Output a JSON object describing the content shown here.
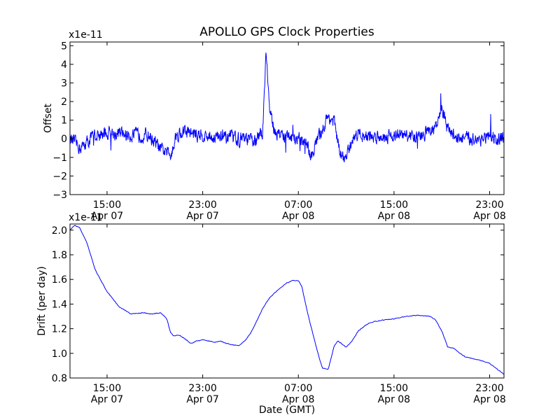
{
  "title": "APOLLO GPS Clock Properties",
  "x_ticks": [
    {
      "hour": 15,
      "time": "15:00",
      "date": "Apr 07"
    },
    {
      "hour": 23,
      "time": "23:00",
      "date": "Apr 07"
    },
    {
      "hour": 31,
      "time": "07:00",
      "date": "Apr 08"
    },
    {
      "hour": 39,
      "time": "15:00",
      "date": "Apr 08"
    },
    {
      "hour": 47,
      "time": "23:00",
      "date": "Apr 08"
    }
  ],
  "xlabel": "Date (GMT)",
  "colors": {
    "line": "#0000ff",
    "axis": "#000000"
  },
  "chart_data": [
    {
      "type": "line",
      "ylabel": "Offset",
      "scale_label": "x1e-11",
      "xlim_hours": [
        11.9,
        48.2
      ],
      "ylim": [
        -3,
        5.2
      ],
      "yticks": [
        -3,
        -2,
        -1,
        0,
        1,
        2,
        3,
        4,
        5
      ],
      "ytick_labels": [
        "−3",
        "−2",
        "−1",
        "0",
        "1",
        "2",
        "3",
        "4",
        "5"
      ],
      "noise_amplitude": 0.55,
      "series": [
        {
          "name": "Offset",
          "hours": [
            11.9,
            12.8,
            14.0,
            15.5,
            17.0,
            18.5,
            19.5,
            20.3,
            20.8,
            21.5,
            22.5,
            24.0,
            26.0,
            27.5,
            28.0,
            28.3,
            28.6,
            29.0,
            30.0,
            31.0,
            31.8,
            32.0,
            32.5,
            33.0,
            33.5,
            34.0,
            34.5,
            35.0,
            35.5,
            36.0,
            37.0,
            39.0,
            41.0,
            42.5,
            43.0,
            43.5,
            44.5,
            46.0,
            48.2
          ],
          "values": [
            0.0,
            -0.5,
            0.2,
            0.3,
            0.2,
            0.2,
            -0.6,
            -0.8,
            0.2,
            0.4,
            0.2,
            0.1,
            0.0,
            -0.1,
            0.3,
            4.8,
            1.5,
            0.4,
            0.1,
            0.0,
            -0.4,
            -1.1,
            -0.2,
            0.5,
            1.2,
            0.9,
            -0.9,
            -1.1,
            0.0,
            0.3,
            0.1,
            0.2,
            0.1,
            0.6,
            1.6,
            0.5,
            0.0,
            0.0,
            0.0
          ]
        }
      ]
    },
    {
      "type": "line",
      "ylabel": "Drift (per day)",
      "scale_label": "x1e-11",
      "xlim_hours": [
        11.9,
        48.2
      ],
      "ylim": [
        0.8,
        2.05
      ],
      "yticks": [
        0.8,
        1.0,
        1.2,
        1.4,
        1.6,
        1.8,
        2.0
      ],
      "ytick_labels": [
        "0.8",
        "1.0",
        "1.2",
        "1.4",
        "1.6",
        "1.8",
        "2.0"
      ],
      "series": [
        {
          "name": "Drift",
          "hours": [
            11.9,
            12.3,
            12.7,
            13.3,
            14.0,
            15.0,
            16.0,
            17.0,
            18.0,
            18.7,
            19.5,
            20.0,
            20.3,
            20.6,
            21.0,
            21.5,
            22.0,
            22.5,
            23.0,
            23.5,
            24.0,
            24.5,
            25.0,
            25.5,
            26.0,
            26.5,
            27.0,
            27.5,
            28.0,
            28.5,
            29.0,
            29.5,
            30.0,
            30.5,
            31.0,
            31.3,
            31.6,
            32.0,
            32.5,
            33.0,
            33.5,
            34.0,
            34.3,
            34.6,
            35.0,
            35.5,
            36.0,
            36.5,
            37.0,
            38.0,
            39.0,
            40.0,
            41.0,
            42.0,
            42.5,
            43.0,
            43.5,
            44.0,
            44.5,
            45.0,
            46.0,
            47.0,
            47.5,
            48.2
          ],
          "values": [
            2.0,
            2.04,
            2.02,
            1.9,
            1.68,
            1.5,
            1.38,
            1.32,
            1.33,
            1.32,
            1.33,
            1.28,
            1.17,
            1.14,
            1.15,
            1.12,
            1.08,
            1.1,
            1.11,
            1.1,
            1.09,
            1.1,
            1.08,
            1.07,
            1.06,
            1.1,
            1.16,
            1.26,
            1.36,
            1.44,
            1.49,
            1.53,
            1.57,
            1.59,
            1.59,
            1.54,
            1.4,
            1.24,
            1.05,
            0.88,
            0.87,
            1.06,
            1.1,
            1.08,
            1.05,
            1.1,
            1.18,
            1.22,
            1.25,
            1.27,
            1.28,
            1.3,
            1.31,
            1.3,
            1.27,
            1.18,
            1.05,
            1.04,
            1.0,
            0.97,
            0.95,
            0.92,
            0.88,
            0.83
          ]
        }
      ]
    }
  ]
}
